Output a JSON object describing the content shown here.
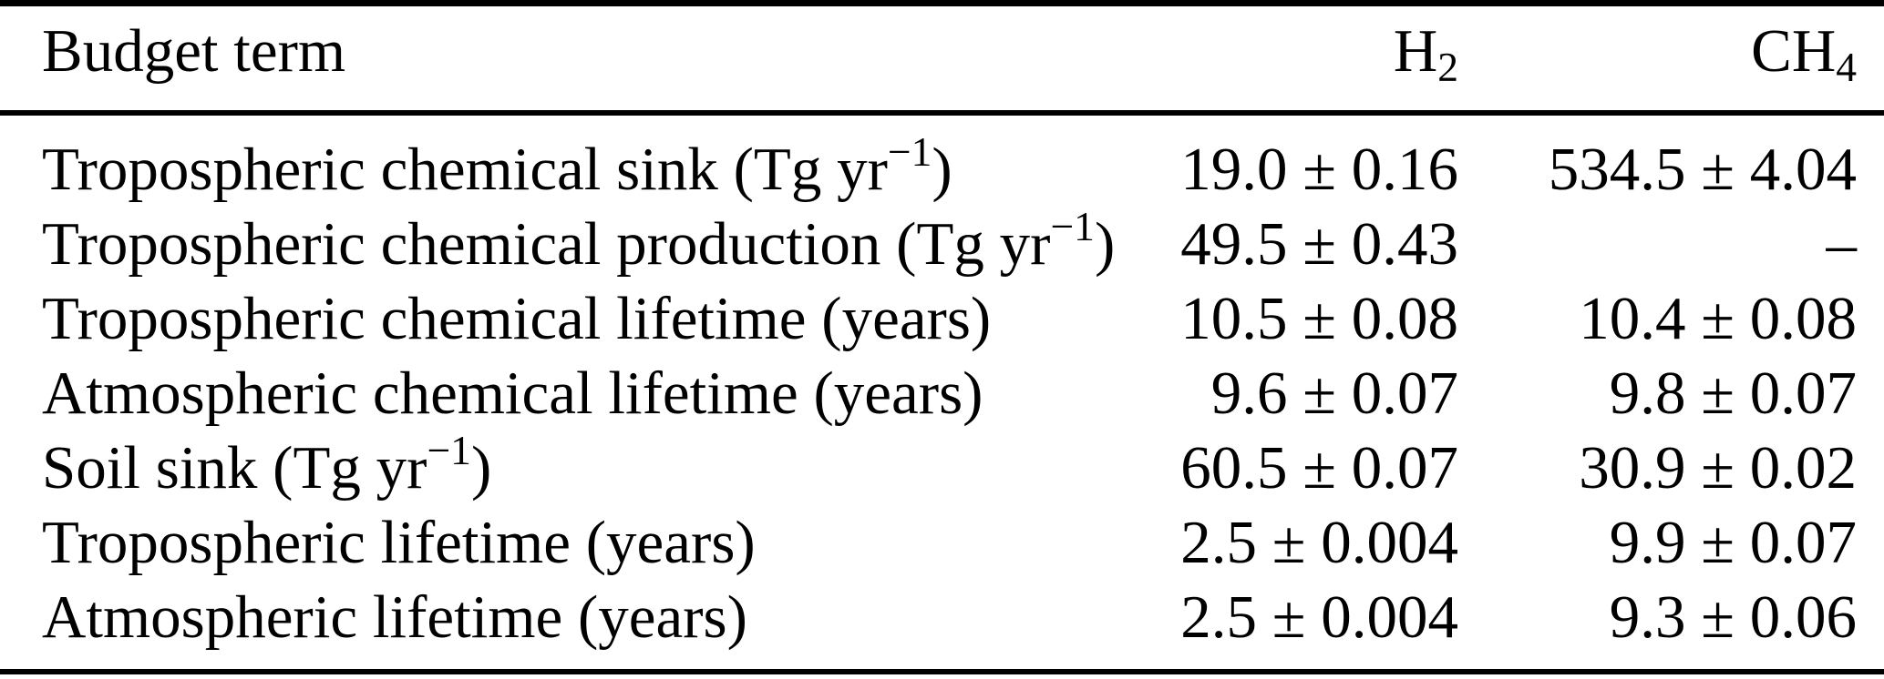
{
  "colors": {
    "background": "#ffffff",
    "text": "#000000",
    "rules": "#000000"
  },
  "table": {
    "header": {
      "term_label": "Budget term",
      "h2_base": "H",
      "h2_sub": "2",
      "ch4_base": "CH",
      "ch4_sub": "4"
    },
    "rows": [
      {
        "label_pre": "Tropospheric chemical sink (Tg yr",
        "label_sup": "−1",
        "label_post": ")",
        "h2": "19.0 ± 0.16",
        "ch4": "534.5 ± 4.04"
      },
      {
        "label_pre": "Tropospheric chemical production (Tg yr",
        "label_sup": "−1",
        "label_post": ")",
        "h2": "49.5 ± 0.43",
        "ch4": "–"
      },
      {
        "label_pre": "Tropospheric chemical lifetime (years)",
        "label_sup": "",
        "label_post": "",
        "h2": "10.5 ± 0.08",
        "ch4": "10.4 ± 0.08"
      },
      {
        "label_pre": "Atmospheric chemical lifetime (years)",
        "label_sup": "",
        "label_post": "",
        "h2": "9.6 ± 0.07",
        "ch4": "9.8 ± 0.07"
      },
      {
        "label_pre": "Soil sink (Tg yr",
        "label_sup": "−1",
        "label_post": ")",
        "h2": "60.5 ± 0.07",
        "ch4": "30.9 ± 0.02"
      },
      {
        "label_pre": "Tropospheric lifetime (years)",
        "label_sup": "",
        "label_post": "",
        "h2": "2.5 ± 0.004",
        "ch4": "9.9 ± 0.07"
      },
      {
        "label_pre": "Atmospheric lifetime (years)",
        "label_sup": "",
        "label_post": "",
        "h2": "2.5 ± 0.004",
        "ch4": "9.3 ± 0.06"
      }
    ]
  }
}
